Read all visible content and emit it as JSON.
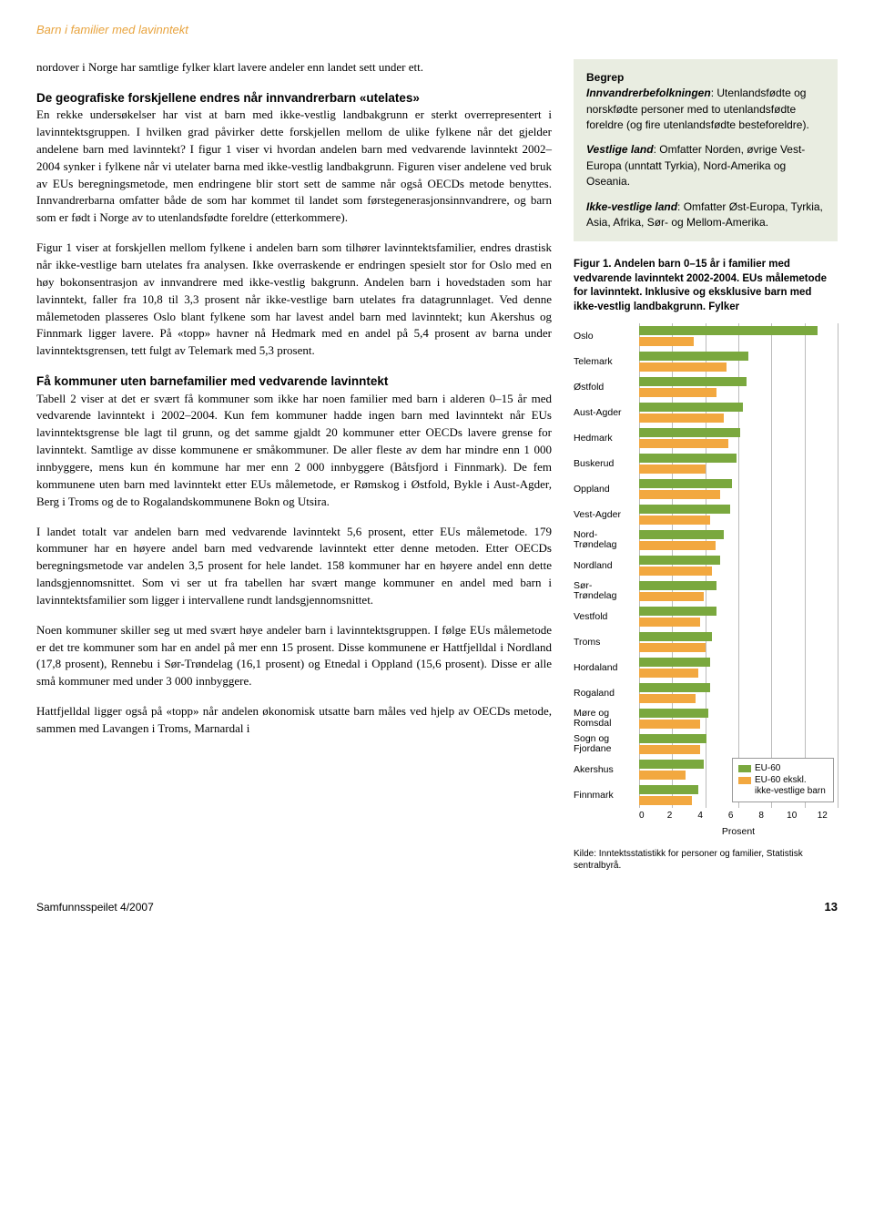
{
  "header": {
    "title": "Barn i familier med lavinntekt"
  },
  "main": {
    "intro": "nordover i Norge har samtlige fylker klart lavere andeler enn landet sett under ett.",
    "h1": "De geografiske forskjellene endres når innvandrerbarn «utelates»",
    "p1": "En rekke undersøkelser har vist at barn med ikke-vestlig landbakgrunn er sterkt overrepresentert i lavinntektsgruppen. I hvilken grad påvirker dette forskjellen mellom de ulike fylkene når det gjelder andelene barn med lavinntekt? I figur 1 viser vi hvordan andelen barn med vedvarende lavinntekt 2002–2004 synker i fylkene når vi utelater barna med ikke-vestlig landbakgrunn. Figuren viser andelene ved bruk av EUs beregningsmetode, men endringene blir stort sett de samme når også OECDs metode benyttes. Innvandrerbarna omfatter både de som har kommet til landet som førstegenerasjonsinnvandrere, og barn som er født i Norge av to utenlandsfødte foreldre (etterkommere).",
    "p2": "Figur 1 viser at forskjellen mellom fylkene i andelen barn som tilhører lavinntektsfamilier, endres drastisk når ikke-vestlige barn utelates fra analysen. Ikke overraskende er endringen spesielt stor for Oslo med en høy bokonsentrasjon av innvandrere med ikke-vestlig bakgrunn. Andelen barn i hovedstaden som har lavinntekt, faller fra 10,8 til 3,3 prosent når ikke-vestlige barn utelates fra datagrunnlaget. Ved denne målemetoden plasseres Oslo blant fylkene som har lavest andel barn med lavinntekt; kun Akershus og Finnmark ligger lavere. På «topp» havner nå Hedmark med en andel på 5,4 prosent av barna under lavinntektsgrensen, tett fulgt av Telemark med 5,3 prosent.",
    "h2": "Få kommuner uten barnefamilier med vedvarende lavinntekt",
    "p3": "Tabell 2 viser at det er svært få kommuner som ikke har noen familier med barn i alderen 0–15 år med vedvarende lavinntekt i 2002–2004. Kun fem kommuner hadde ingen barn med lavinntekt når EUs lavinntektsgrense ble lagt til grunn, og det samme gjaldt 20 kommuner etter OECDs lavere grense for lavinntekt. Samtlige av disse kommunene er småkommuner. De aller fleste av dem har mindre enn 1 000 innbyggere, mens kun én kommune har mer enn 2 000 innbyggere (Båtsfjord i Finnmark). De fem kommunene uten barn med lavinntekt etter EUs målemetode, er Rømskog i Østfold, Bykle i Aust-Agder, Berg i Troms og de to Rogalandskommunene Bokn og Utsira.",
    "p4": "I landet totalt var andelen barn med vedvarende lavinntekt 5,6 prosent, etter EUs målemetode. 179 kommuner har en høyere andel barn med vedvarende lavinntekt etter denne metoden. Etter OECDs beregningsmetode var andelen 3,5 prosent for hele landet. 158 kommuner har en høyere andel enn dette landsgjennomsnittet. Som vi ser ut fra tabellen har svært mange kommuner en andel med barn i lavinntektsfamilier som ligger i intervallene rundt landsgjennomsnittet.",
    "p5": "Noen kommuner skiller seg ut med svært høye andeler barn i lavinntektsgruppen. I følge EUs målemetode er det tre kommuner som har en andel på mer enn 15 prosent. Disse kommunene er Hattfjelldal i Nordland (17,8 prosent), Rennebu i Sør-Trøndelag (16,1 prosent) og Etnedal i Oppland (15,6 prosent). Disse er alle små kommuner med under 3 000 innbyggere.",
    "p6": "Hattfjelldal ligger også på «topp» når andelen økonomisk utsatte barn måles ved hjelp av OECDs metode, sammen med Lavangen i Troms, Marnardal i"
  },
  "sidebar": {
    "begrep": {
      "title": "Begrep",
      "p1a": "Innvandrerbefolkningen",
      "p1b": ": Utenlandsfødte og norskfødte personer med to utenlandsfødte foreldre (og fire utenlandsfødte besteforeldre).",
      "p2a": "Vestlige land",
      "p2b": ": Omfatter Norden, øvrige Vest-Europa (unntatt Tyrkia), Nord-Amerika og Oseania.",
      "p3a": "Ikke-vestlige land",
      "p3b": ": Omfatter Øst-Europa, Tyrkia, Asia, Afrika, Sør- og Mellom-Amerika."
    },
    "figure": {
      "caption": "Figur 1.  Andelen barn 0–15 år i familier med vedvarende lavinntekt 2002-2004. EUs målemetode for lavinntekt. Inklusive og eksklusive barn med ikke-vestlig landbakgrunn. Fylker",
      "xmax": 12,
      "xticks": [
        0,
        2,
        4,
        6,
        8,
        10,
        12
      ],
      "xlabel": "Prosent",
      "legend": {
        "s1": "EU-60",
        "s2": "EU-60 ekskl. ikke-vestlige barn"
      },
      "colors": {
        "green": "#7aa83e",
        "orange": "#f2a840",
        "grid": "#bbbbbb"
      },
      "rows": [
        {
          "label": "Oslo",
          "v1": 10.8,
          "v2": 3.3
        },
        {
          "label": "Telemark",
          "v1": 6.6,
          "v2": 5.3
        },
        {
          "label": "Østfold",
          "v1": 6.5,
          "v2": 4.7
        },
        {
          "label": "Aust-Agder",
          "v1": 6.3,
          "v2": 5.1
        },
        {
          "label": "Hedmark",
          "v1": 6.1,
          "v2": 5.4
        },
        {
          "label": "Buskerud",
          "v1": 5.9,
          "v2": 4.0
        },
        {
          "label": "Oppland",
          "v1": 5.6,
          "v2": 4.9
        },
        {
          "label": "Vest-Agder",
          "v1": 5.5,
          "v2": 4.3
        },
        {
          "label": "Nord-\nTrøndelag",
          "v1": 5.1,
          "v2": 4.6
        },
        {
          "label": "Nordland",
          "v1": 4.9,
          "v2": 4.4
        },
        {
          "label": "Sør-\nTrøndelag",
          "v1": 4.7,
          "v2": 3.9
        },
        {
          "label": "Vestfold",
          "v1": 4.7,
          "v2": 3.7
        },
        {
          "label": "Troms",
          "v1": 4.4,
          "v2": 4.0
        },
        {
          "label": "Hordaland",
          "v1": 4.3,
          "v2": 3.6
        },
        {
          "label": "Rogaland",
          "v1": 4.3,
          "v2": 3.4
        },
        {
          "label": "Møre og\nRomsdal",
          "v1": 4.2,
          "v2": 3.7
        },
        {
          "label": "Sogn og\nFjordane",
          "v1": 4.1,
          "v2": 3.7
        },
        {
          "label": "Akershus",
          "v1": 3.9,
          "v2": 2.8
        },
        {
          "label": "Finnmark",
          "v1": 3.6,
          "v2": 3.2
        }
      ],
      "source": "Kilde: Inntektsstatistikk for personer og familier, Statistisk sentralbyrå."
    }
  },
  "footer": {
    "left": "Samfunnsspeilet 4/2007",
    "page": "13"
  }
}
